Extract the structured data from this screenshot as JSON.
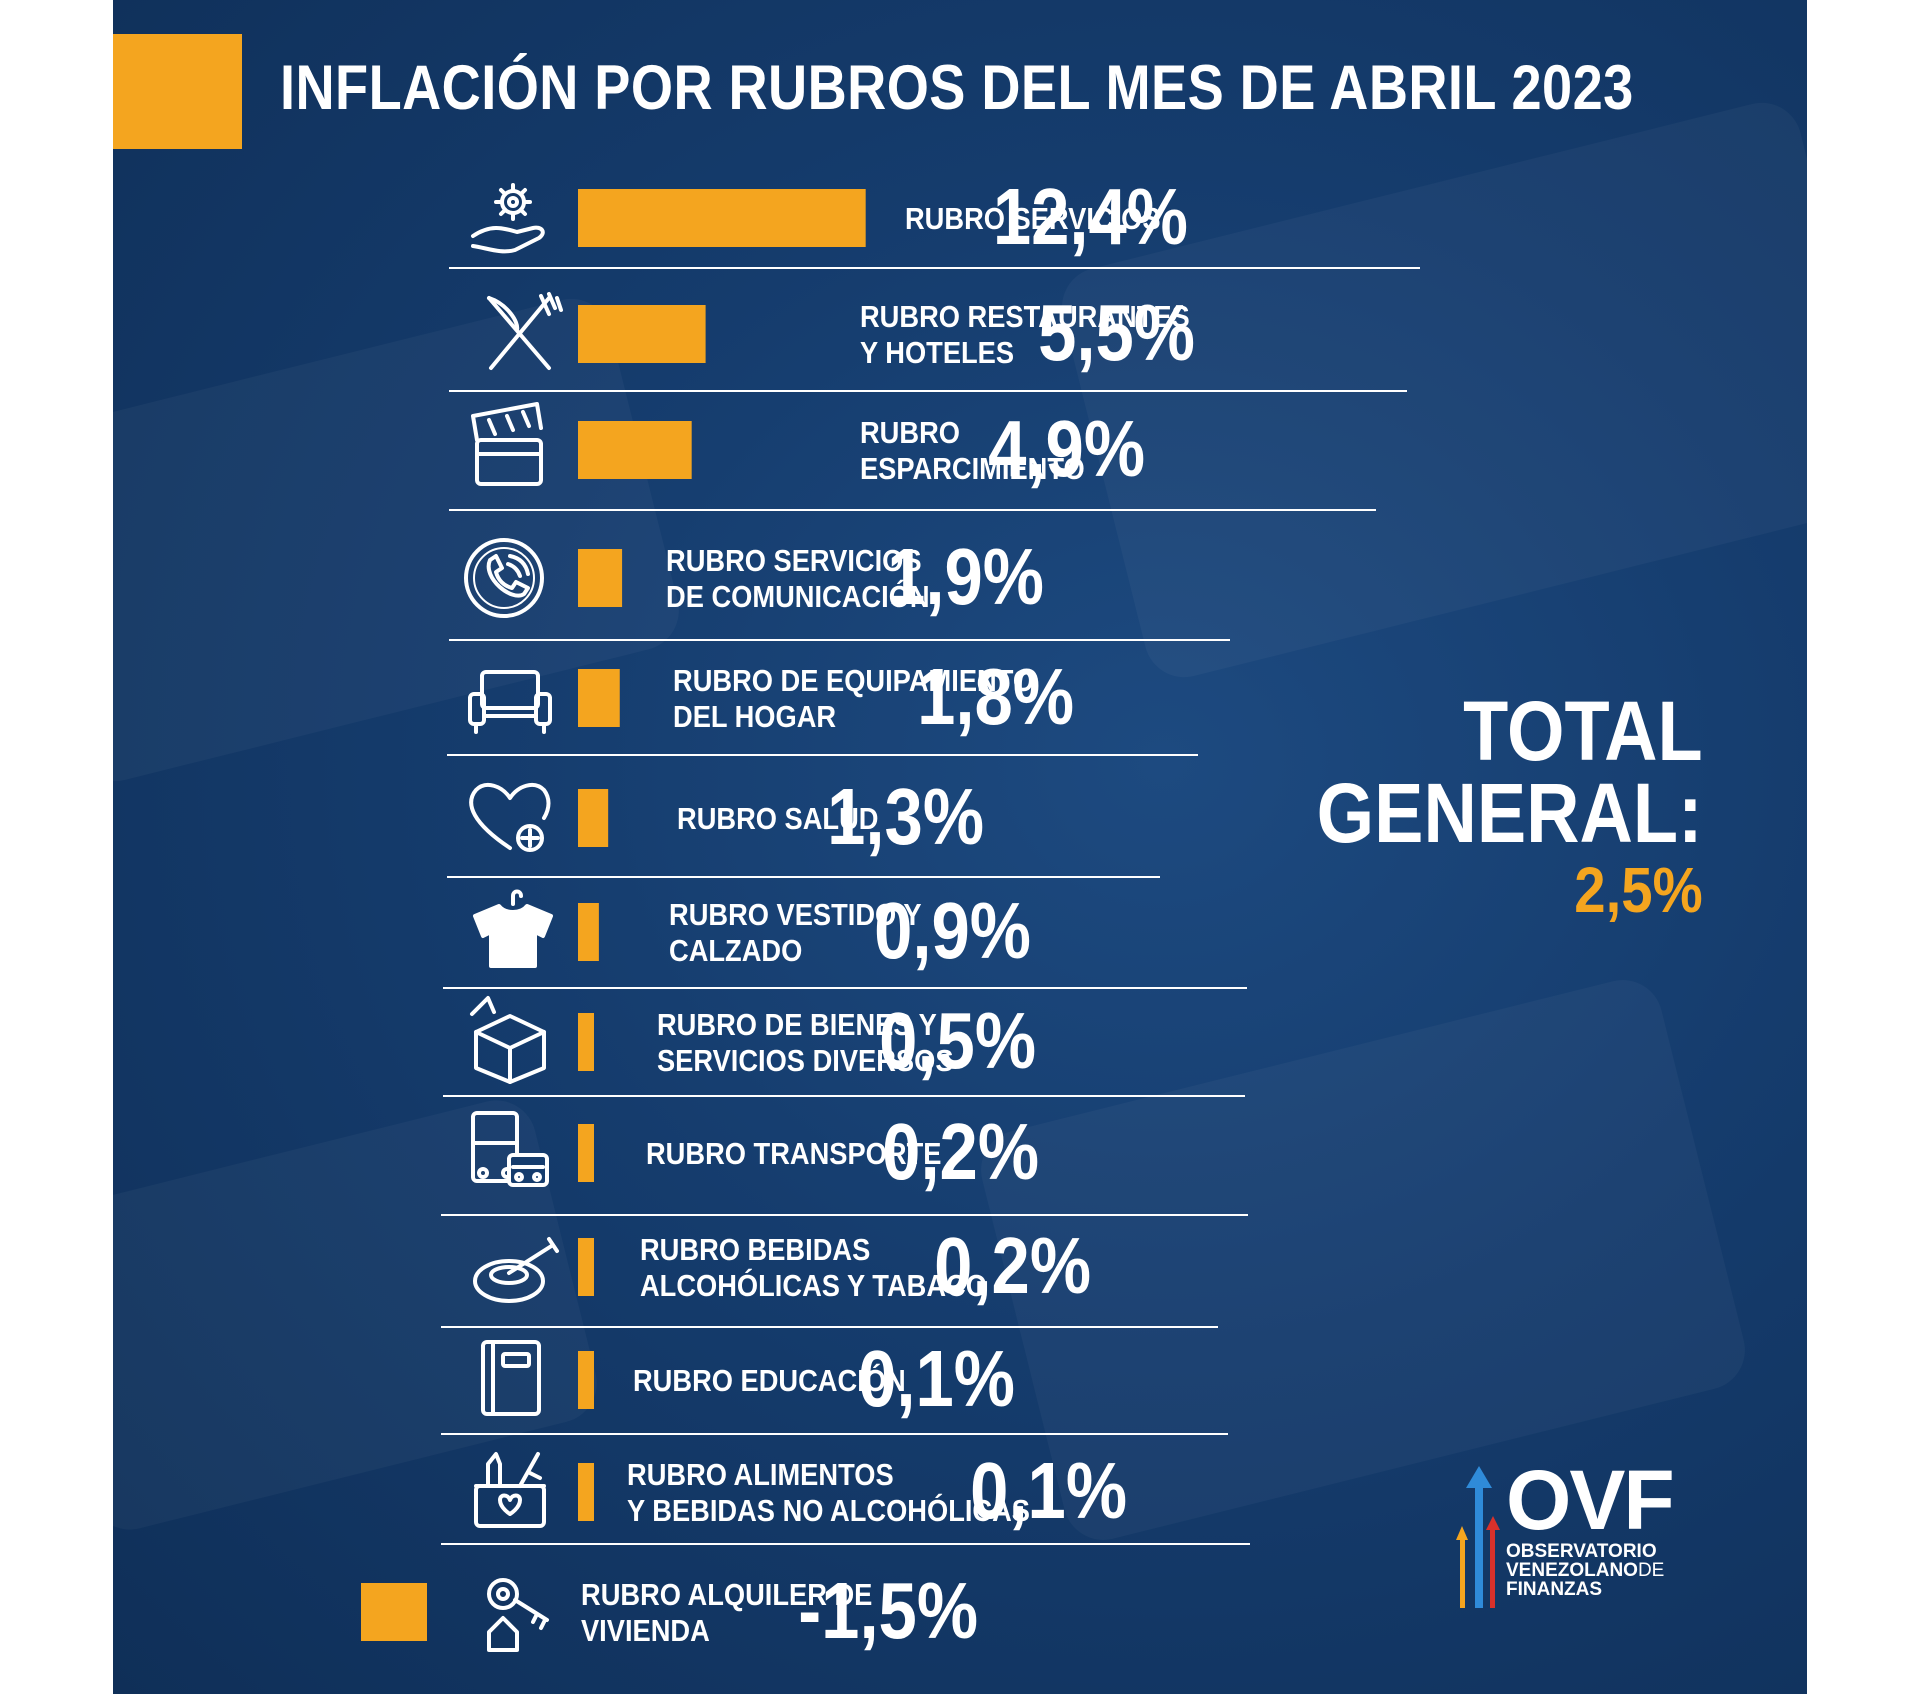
{
  "title": "INFLACIÓN POR RUBROS DEL MES DE ABRIL 2023",
  "colors": {
    "accent": "#f4a51f",
    "background": "#153c6d",
    "text": "#ffffff"
  },
  "total": {
    "line1": "TOTAL",
    "line2": "GENERAL:",
    "value": "2,5%"
  },
  "logo": {
    "name": "OVF",
    "line1": "OBSERVATORIO",
    "line2": "VENEZOLANO",
    "line2b": "DE",
    "line3": "FINANZAS"
  },
  "chart_data": {
    "type": "bar",
    "orientation": "horizontal",
    "title": "INFLACIÓN POR RUBROS DEL MES DE ABRIL 2023",
    "unit": "%",
    "categories": [
      [
        "RUBRO SERVICIOS"
      ],
      [
        "RUBRO RESTAURANTES",
        "Y HOTELES"
      ],
      [
        "RUBRO",
        "ESPARCIMIENTO"
      ],
      [
        "RUBRO SERVICIOS",
        "DE COMUNICACIÓN"
      ],
      [
        "RUBRO DE EQUIPAMIENTO",
        "DEL HOGAR"
      ],
      [
        "RUBRO SALUD"
      ],
      [
        "RUBRO VESTIDO Y",
        "CALZADO"
      ],
      [
        "RUBRO DE BIENES Y",
        "SERVICIOS DIVERSOS"
      ],
      [
        "RUBRO TRANSPORTE"
      ],
      [
        "RUBRO BEBIDAS",
        "ALCOHÓLICAS Y TABACO"
      ],
      [
        "RUBRO EDUCACIÓN"
      ],
      [
        "RUBRO ALIMENTOS",
        "Y BEBIDAS NO ALCOHÓLICAS"
      ],
      [
        "RUBRO ALQUILER DE",
        "VIVIENDA"
      ]
    ],
    "values": [
      12.4,
      5.5,
      4.9,
      1.9,
      1.8,
      1.3,
      0.9,
      0.5,
      0.2,
      0.2,
      0.1,
      0.1,
      -1.5
    ],
    "value_labels": [
      "12,4%",
      "5,5%",
      "4,9%",
      "1,9%",
      "1,8%",
      "1,3%",
      "0,9%",
      "0,5%",
      "0,2%",
      "0,2%",
      "0,1%",
      "0,1%",
      "-1,5%"
    ],
    "icons": [
      "hand-gear-icon",
      "cutlery-icon",
      "clapperboard-icon",
      "phone-icon",
      "sofa-icon",
      "heart-plus-icon",
      "shirt-icon",
      "box-icon",
      "bus-car-icon",
      "ashtray-icon",
      "book-icon",
      "grocery-basket-icon",
      "house-key-icon"
    ]
  }
}
